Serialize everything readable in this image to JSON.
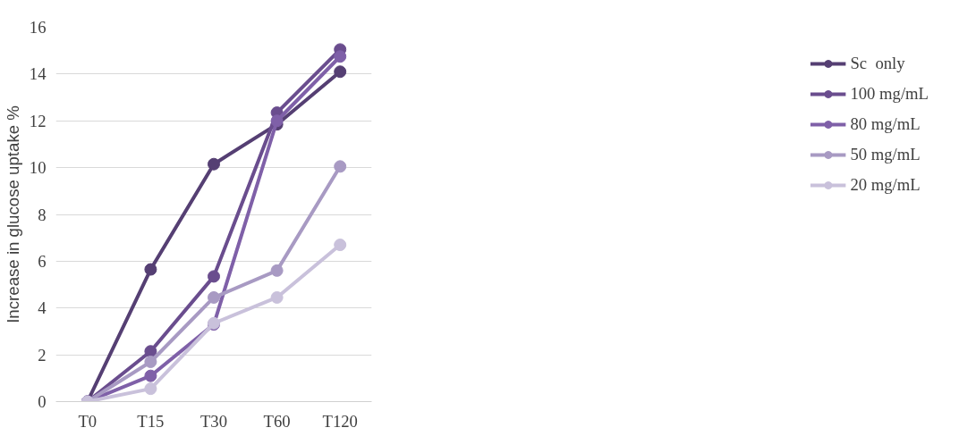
{
  "chart_data": {
    "type": "line",
    "ylabel": "Increase in glucose uptake %",
    "categories": [
      "T0",
      "T15",
      "T30",
      "T60",
      "T120"
    ],
    "ylim": [
      0,
      16
    ],
    "yticks": [
      0,
      2,
      4,
      6,
      8,
      10,
      12,
      14,
      16
    ],
    "grid": "y",
    "legend": "right",
    "marker": "circle",
    "line_style": "solid",
    "series": [
      {
        "name": "Sc  only",
        "color": "#553f73",
        "values": [
          0,
          5.65,
          10.15,
          11.85,
          14.1
        ]
      },
      {
        "name": "100 mg/mL",
        "color": "#6a4d8e",
        "values": [
          0,
          2.15,
          5.35,
          12.35,
          15.05
        ]
      },
      {
        "name": "80 mg/mL",
        "color": "#7f60a8",
        "values": [
          0,
          1.1,
          3.3,
          12.0,
          14.75
        ]
      },
      {
        "name": "50 mg/mL",
        "color": "#a89ac3",
        "values": [
          0,
          1.7,
          4.45,
          5.6,
          10.05
        ]
      },
      {
        "name": "20 mg/mL",
        "color": "#c9c1db",
        "values": [
          0,
          0.55,
          3.35,
          4.45,
          6.7
        ]
      }
    ]
  }
}
